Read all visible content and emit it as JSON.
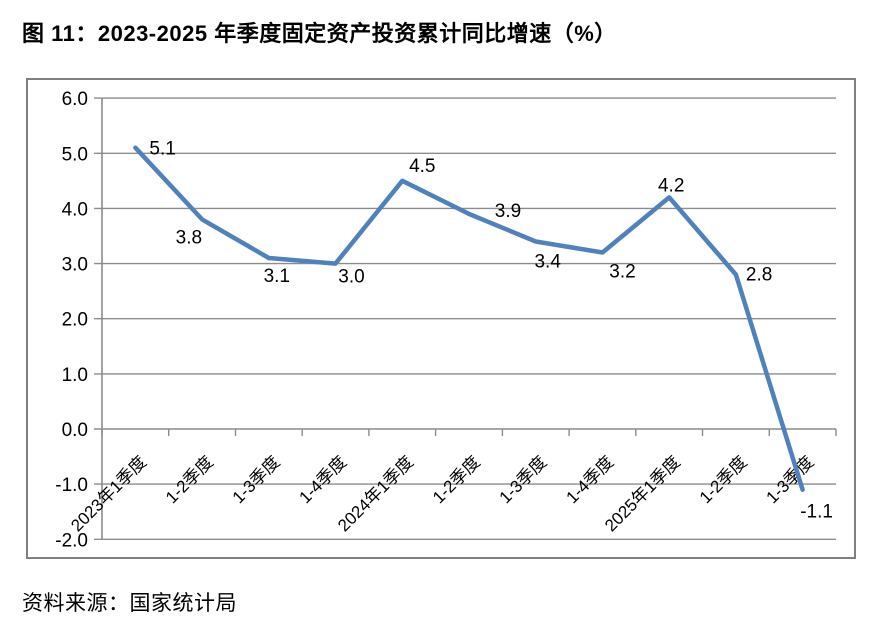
{
  "figure": {
    "title": "图 11：2023-2025 年季度固定资产投资累计同比增速（%）",
    "source": "资料来源：国家统计局"
  },
  "chart_data": {
    "type": "line",
    "title": "2023-2025 年季度固定资产投资累计同比增速（%）",
    "categories": [
      "2023年1季度",
      "1-2季度",
      "1-3季度",
      "1-4季度",
      "2024年1季度",
      "1-2季度",
      "1-3季度",
      "1-4季度",
      "2025年1季度",
      "1-2季度",
      "1-3季度"
    ],
    "values": [
      5.1,
      3.8,
      3.1,
      3.0,
      4.5,
      3.9,
      3.4,
      3.2,
      4.2,
      2.8,
      -1.1
    ],
    "xlabel": "",
    "ylabel": "",
    "ylim": [
      -2.0,
      6.0
    ],
    "yticks": [
      6.0,
      5.0,
      4.0,
      3.0,
      2.0,
      1.0,
      0.0,
      -1.0,
      -2.0
    ],
    "grid": true,
    "legend_position": "none",
    "line_color": "#4F81BD",
    "grid_color": "#8C8C8C",
    "border_color": "#808080",
    "text_color": "#000000"
  }
}
